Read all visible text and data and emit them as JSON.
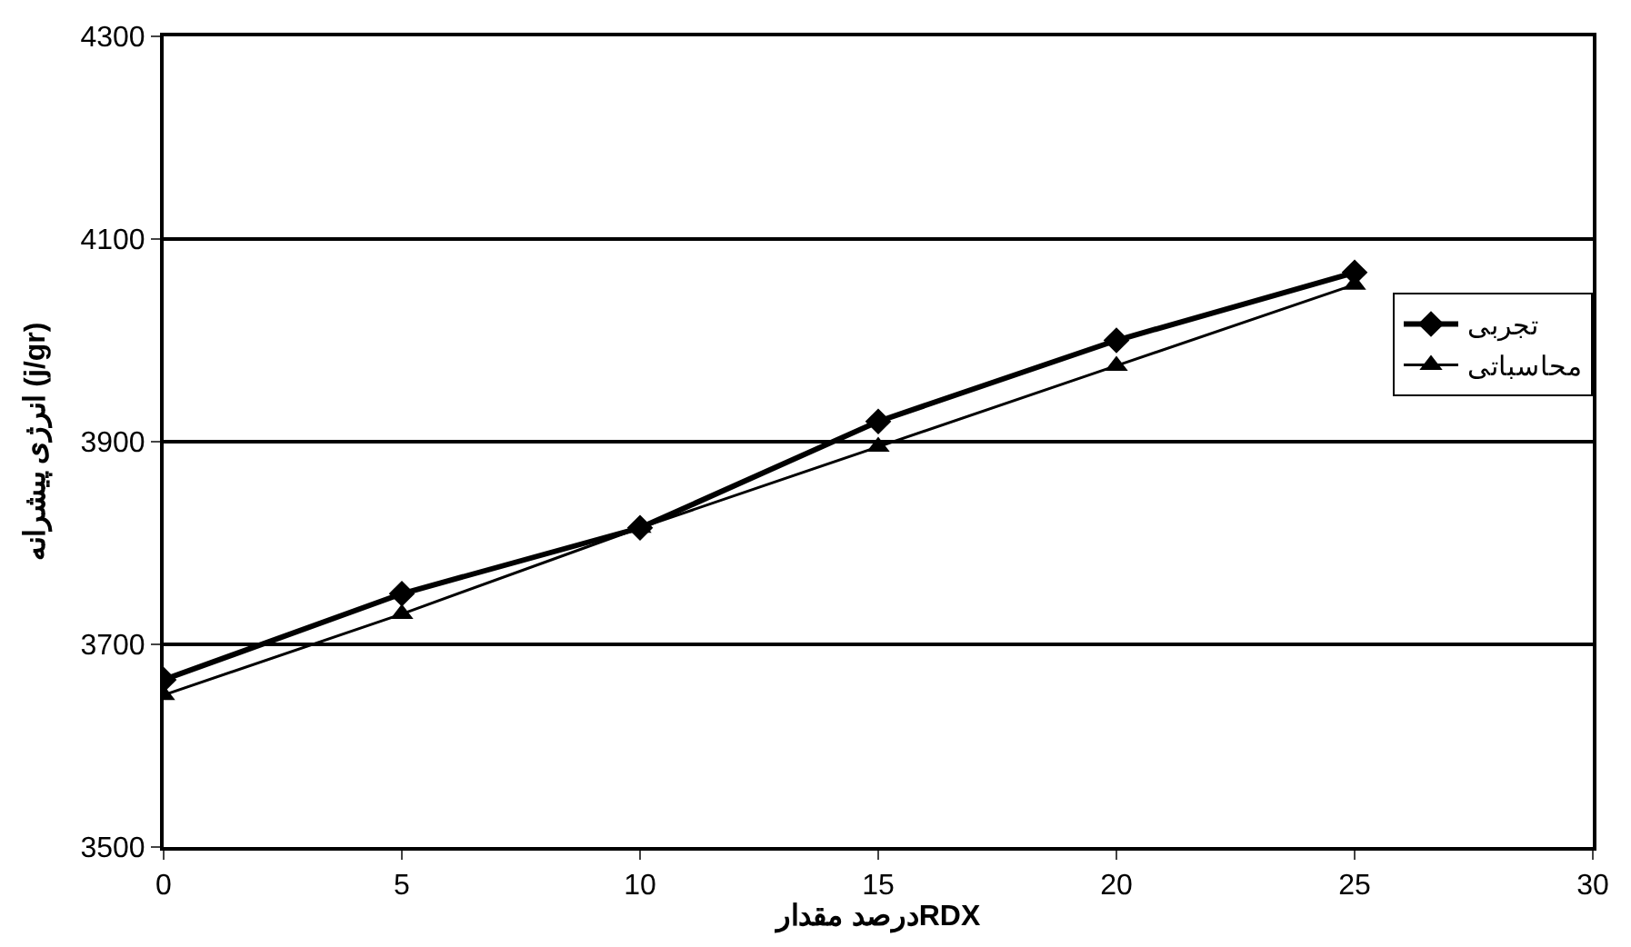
{
  "chart_data": {
    "type": "line",
    "xlabel": "درصد مقدارRDX",
    "ylabel": "انرژی پیشرانه (j/gr)",
    "x": [
      0,
      5,
      10,
      15,
      20,
      25
    ],
    "xlim": [
      0,
      30
    ],
    "xticks": [
      0,
      5,
      10,
      15,
      20,
      25,
      30
    ],
    "ylim": [
      3500,
      4300
    ],
    "yticks": [
      3500,
      3700,
      3900,
      4100,
      4300
    ],
    "grid": "y",
    "legend": "right",
    "series": [
      {
        "name": "تجربی",
        "color": "#000000",
        "values": [
          3665,
          3750,
          3815,
          3920,
          4000,
          4067
        ],
        "marker": "diamond"
      },
      {
        "name": "محاسباتی",
        "color": "#000000",
        "values": [
          3650,
          3730,
          3815,
          3895,
          3975,
          4055
        ],
        "marker": "triangle"
      }
    ]
  }
}
